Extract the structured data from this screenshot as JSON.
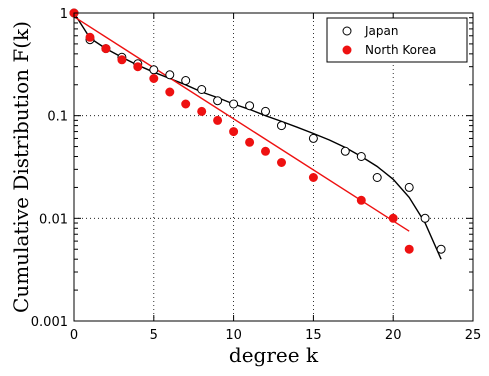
{
  "chart_data": {
    "type": "scatter",
    "title": "",
    "xlabel": "degree k",
    "ylabel": "Cumulative Distribution F(k)",
    "xlim": [
      0,
      25
    ],
    "ylim": [
      0.001,
      1
    ],
    "yscale": "log",
    "grid": true,
    "legend_position": "top-right",
    "x_ticks": [
      0,
      5,
      10,
      15,
      20,
      25
    ],
    "x_tick_labels": [
      "0",
      "5",
      "10",
      "15",
      "20",
      "25"
    ],
    "y_ticks": [
      0.001,
      0.01,
      0.1,
      1
    ],
    "y_tick_labels": [
      "0.001",
      "0.01",
      "0.1",
      "1"
    ],
    "series": [
      {
        "name": "Japan",
        "marker": "open-circle",
        "color": "#000000",
        "points": [
          [
            0,
            1
          ],
          [
            1,
            0.55
          ],
          [
            2,
            0.45
          ],
          [
            3,
            0.37
          ],
          [
            4,
            0.32
          ],
          [
            5,
            0.28
          ],
          [
            6,
            0.25
          ],
          [
            7,
            0.22
          ],
          [
            8,
            0.18
          ],
          [
            9,
            0.14
          ],
          [
            10,
            0.13
          ],
          [
            11,
            0.125
          ],
          [
            12,
            0.11
          ],
          [
            13,
            0.08
          ],
          [
            15,
            0.06
          ],
          [
            17,
            0.045
          ],
          [
            18,
            0.04
          ],
          [
            19,
            0.025
          ],
          [
            21,
            0.02
          ],
          [
            22,
            0.01
          ],
          [
            23,
            0.005
          ]
        ],
        "fit": [
          [
            0,
            1
          ],
          [
            1,
            0.57
          ],
          [
            2,
            0.45
          ],
          [
            3,
            0.37
          ],
          [
            4,
            0.31
          ],
          [
            5,
            0.265
          ],
          [
            6,
            0.23
          ],
          [
            7,
            0.2
          ],
          [
            8,
            0.17
          ],
          [
            9,
            0.15
          ],
          [
            10,
            0.13
          ],
          [
            11,
            0.115
          ],
          [
            12,
            0.1
          ],
          [
            13,
            0.088
          ],
          [
            14,
            0.077
          ],
          [
            15,
            0.067
          ],
          [
            16,
            0.058
          ],
          [
            17,
            0.049
          ],
          [
            18,
            0.04
          ],
          [
            19,
            0.032
          ],
          [
            20,
            0.024
          ],
          [
            21,
            0.016
          ],
          [
            22,
            0.009
          ],
          [
            23,
            0.004
          ]
        ]
      },
      {
        "name": "North Korea",
        "marker": "filled-circle",
        "color": "#ee1111",
        "points": [
          [
            0,
            1
          ],
          [
            1,
            0.58
          ],
          [
            2,
            0.45
          ],
          [
            3,
            0.35
          ],
          [
            4,
            0.3
          ],
          [
            5,
            0.23
          ],
          [
            6,
            0.17
          ],
          [
            7,
            0.13
          ],
          [
            8,
            0.11
          ],
          [
            9,
            0.09
          ],
          [
            10,
            0.07
          ],
          [
            11,
            0.055
          ],
          [
            12,
            0.045
          ],
          [
            13,
            0.035
          ],
          [
            15,
            0.025
          ],
          [
            18,
            0.015
          ],
          [
            20,
            0.01
          ],
          [
            21,
            0.005
          ]
        ],
        "fit": [
          [
            0,
            0.92
          ],
          [
            21,
            0.0075
          ]
        ]
      }
    ]
  }
}
